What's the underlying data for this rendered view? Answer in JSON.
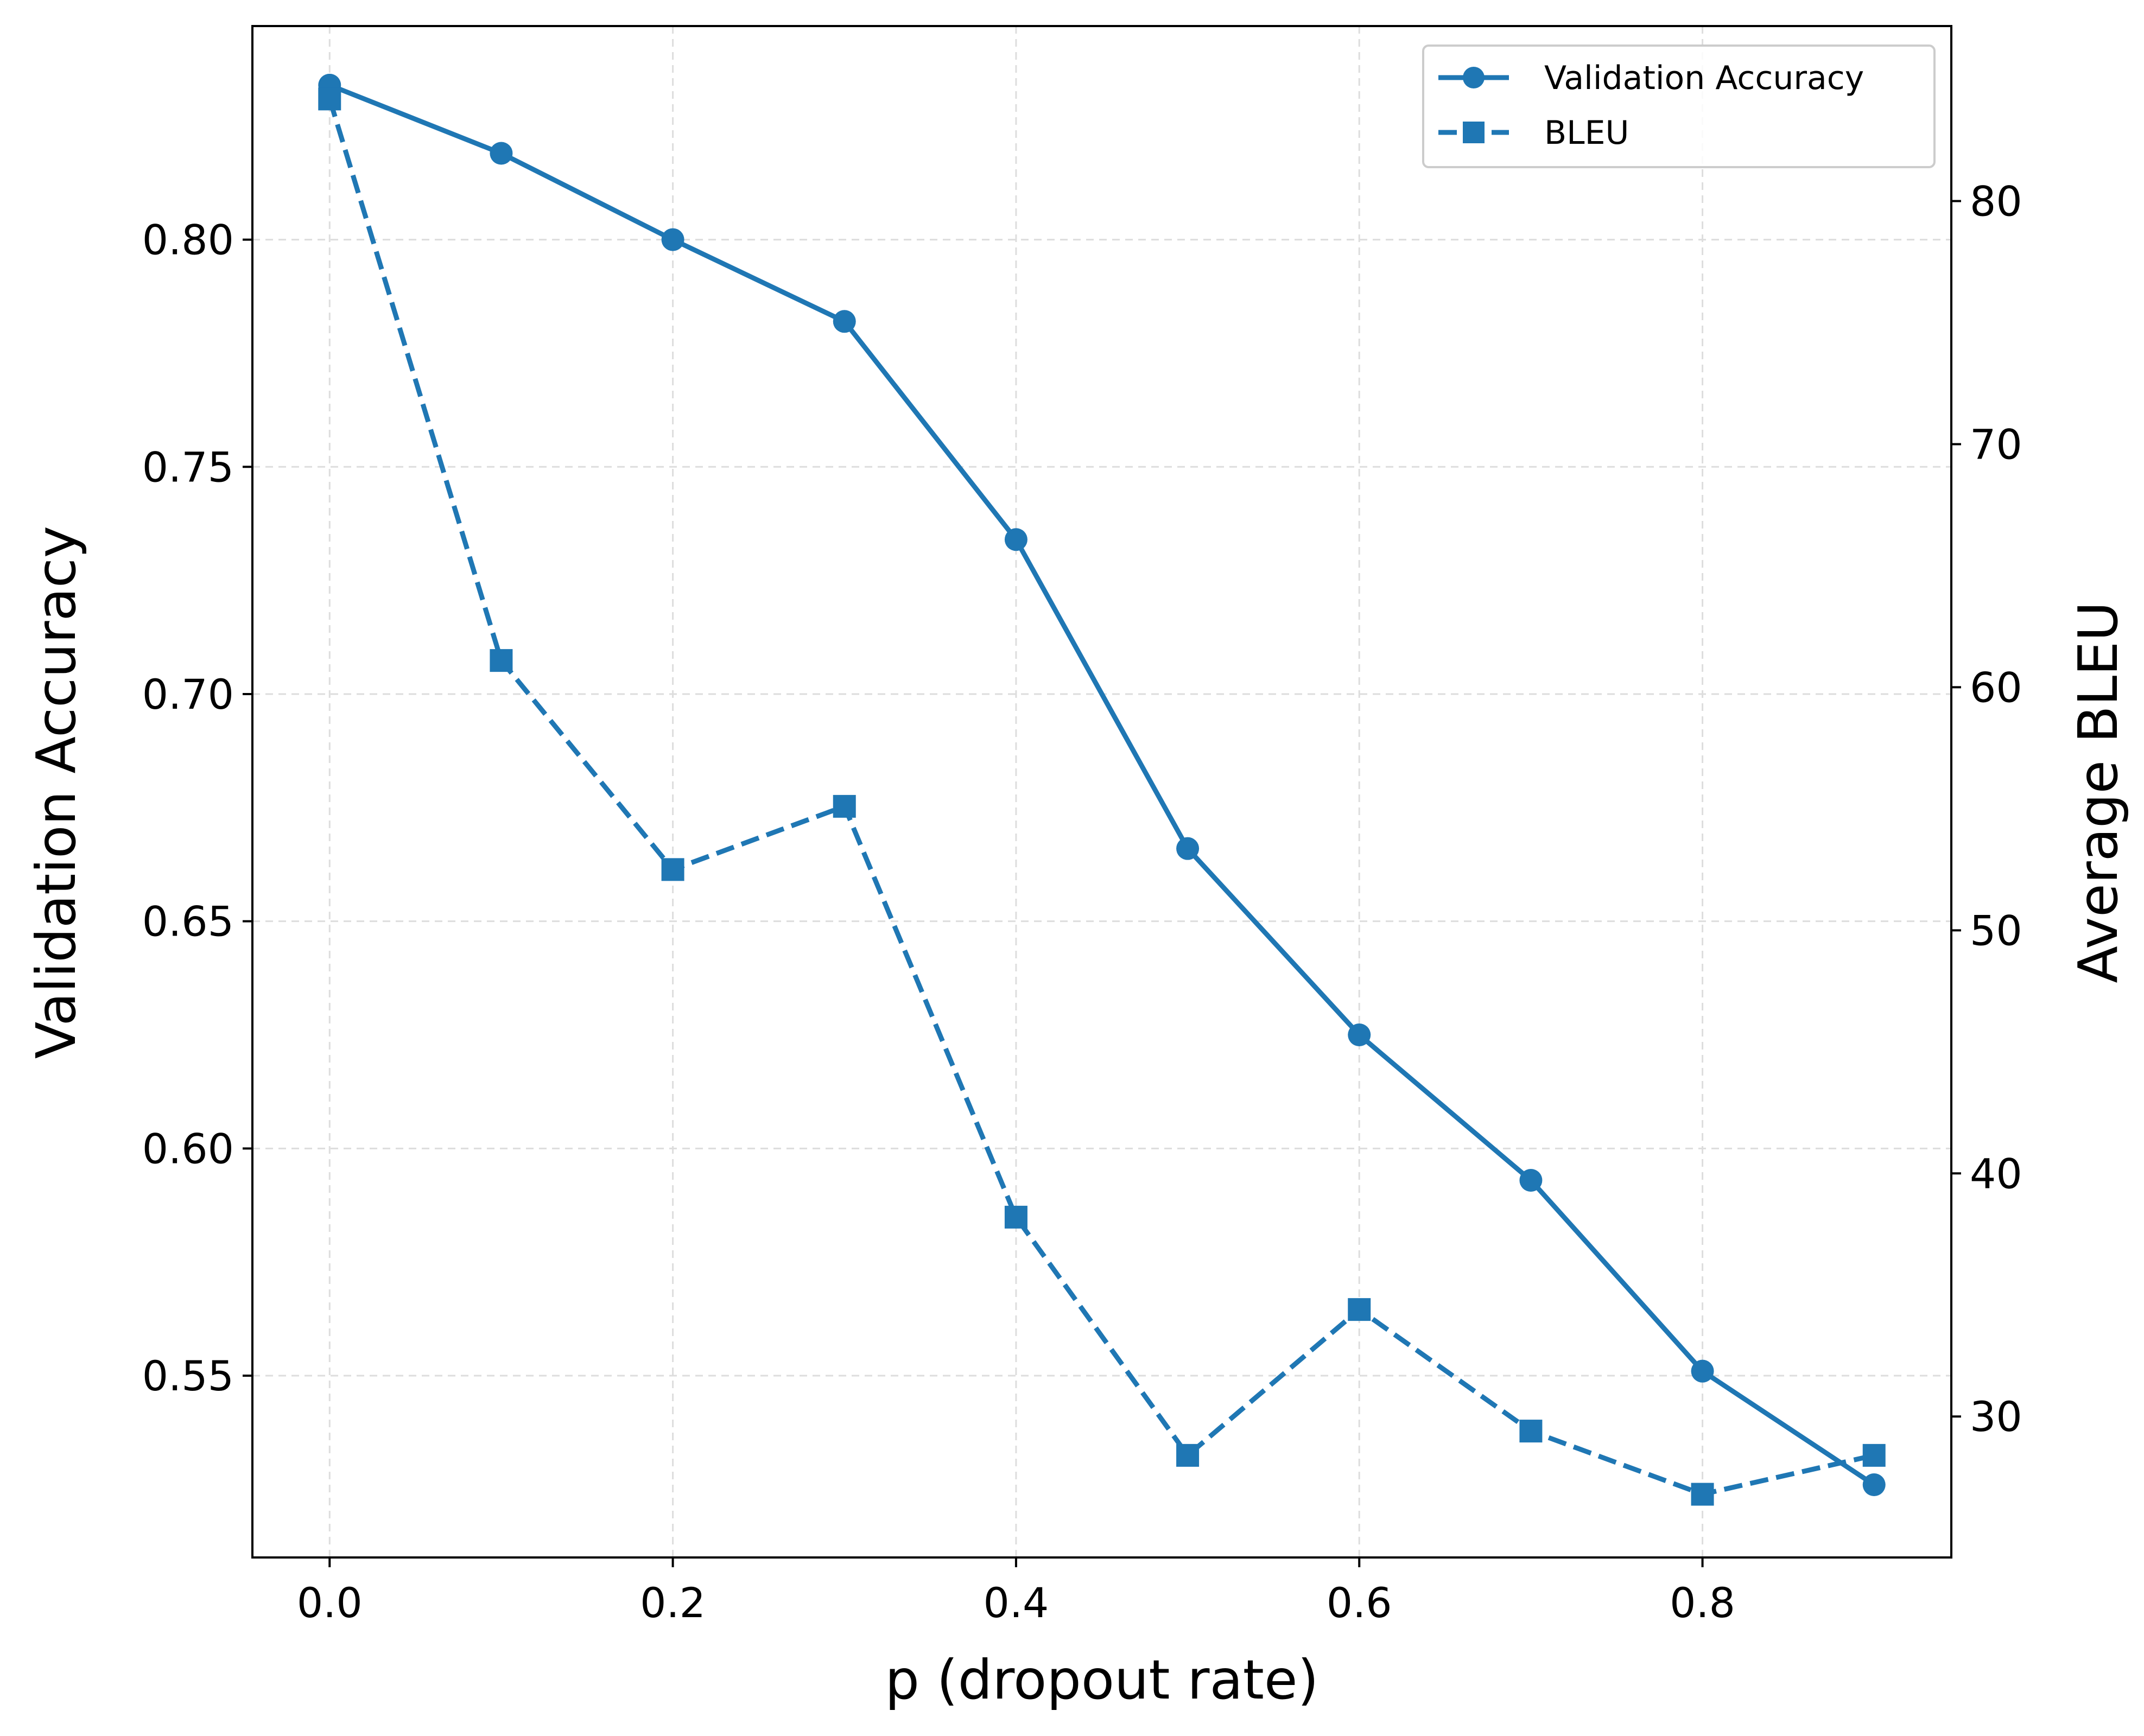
{
  "chart_data": {
    "type": "line",
    "xlabel": "p (dropout rate)",
    "ylabel": "Validation Accuracy",
    "y2label": "Average BLEU",
    "xlim": [
      -0.045,
      0.945
    ],
    "ylim": [
      0.51,
      0.847
    ],
    "y2lim": [
      24.2,
      87.2
    ],
    "x_ticks": [
      "0.0",
      "0.2",
      "0.4",
      "0.6",
      "0.8"
    ],
    "y_ticks": [
      "0.55",
      "0.60",
      "0.65",
      "0.70",
      "0.75",
      "0.80"
    ],
    "y2_ticks": [
      "30",
      "40",
      "50",
      "60",
      "70",
      "80"
    ],
    "grid": true,
    "legend_position": "top-right",
    "x": [
      0.0,
      0.1,
      0.2,
      0.3,
      0.4,
      0.5,
      0.6,
      0.7,
      0.8,
      0.9
    ],
    "series": [
      {
        "name": "Validation Accuracy",
        "axis": "left",
        "marker": "circle",
        "linestyle": "solid",
        "color": "#1f77b4",
        "values": [
          0.834,
          0.819,
          0.8,
          0.782,
          0.734,
          0.666,
          0.625,
          0.593,
          0.551,
          0.526
        ]
      },
      {
        "name": "BLEU",
        "axis": "right",
        "marker": "square",
        "linestyle": "dashed",
        "color": "#1f77b4",
        "values": [
          84.2,
          61.1,
          52.5,
          55.1,
          38.2,
          28.4,
          34.4,
          29.4,
          26.8,
          28.4
        ]
      }
    ]
  }
}
